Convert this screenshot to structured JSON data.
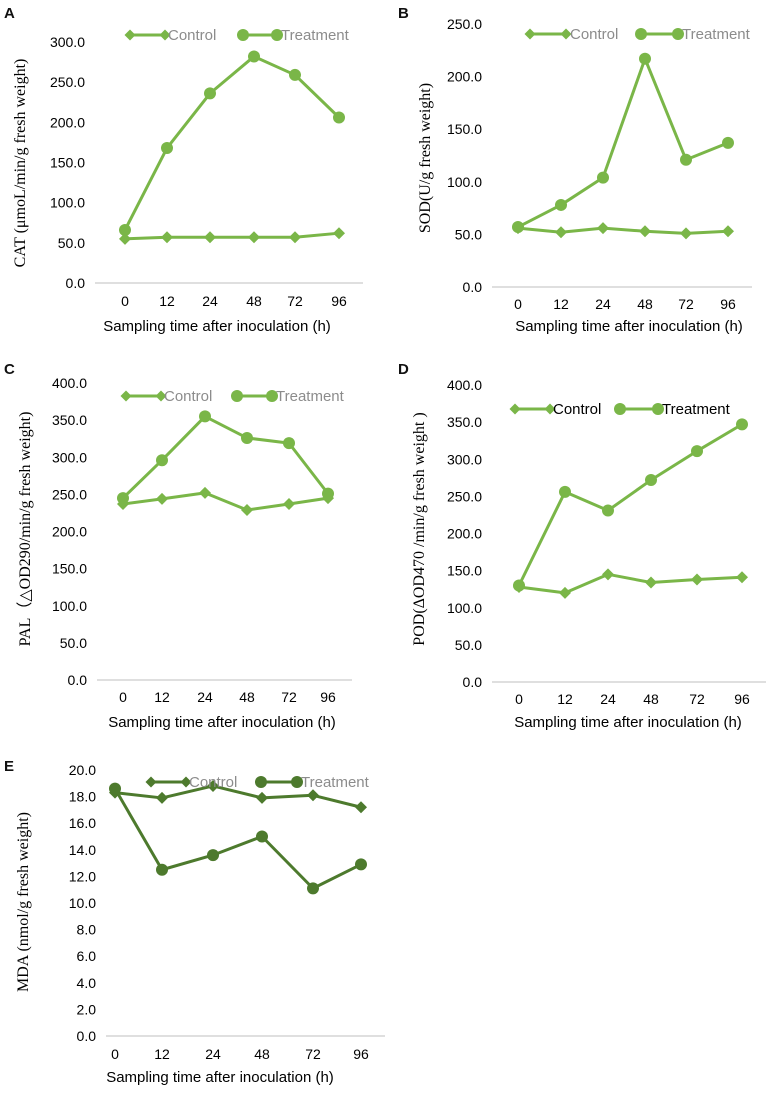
{
  "chart_data": [
    {
      "panel": "A",
      "type": "line",
      "categories": [
        "0",
        "12",
        "24",
        "48",
        "72",
        "96"
      ],
      "series": [
        {
          "name": "Control",
          "marker": "diamond",
          "values": [
            55,
            57,
            57,
            57,
            57,
            62
          ]
        },
        {
          "name": "Treatment",
          "marker": "circle",
          "values": [
            66,
            168,
            236,
            282,
            259,
            206
          ]
        }
      ],
      "yticks": [
        "0.0",
        "50.0",
        "100.0",
        "150.0",
        "200.0",
        "250.0",
        "300.0"
      ],
      "ylim": [
        0,
        300
      ],
      "xlabel": "Sampling time after inoculation (h)",
      "ylabel": "CAT (μmoL/min/g fresh weight)",
      "legend_position": "top"
    },
    {
      "panel": "B",
      "type": "line",
      "categories": [
        "0",
        "12",
        "24",
        "48",
        "72",
        "96"
      ],
      "series": [
        {
          "name": "Control",
          "marker": "diamond",
          "values": [
            56,
            52,
            56,
            53,
            51,
            53
          ]
        },
        {
          "name": "Treatment",
          "marker": "circle",
          "values": [
            57,
            78,
            104,
            217,
            121,
            137
          ]
        }
      ],
      "yticks": [
        "0.0",
        "50.0",
        "100.0",
        "150.0",
        "200.0",
        "250.0"
      ],
      "ylim": [
        0,
        250
      ],
      "xlabel": "Sampling time after inoculation (h)",
      "ylabel": "SOD(U/g fresh weight)",
      "legend_position": "top"
    },
    {
      "panel": "C",
      "type": "line",
      "categories": [
        "0",
        "12",
        "24",
        "48",
        "72",
        "96"
      ],
      "series": [
        {
          "name": "Control",
          "marker": "diamond",
          "values": [
            237,
            244,
            252,
            229,
            237,
            245
          ]
        },
        {
          "name": "Treatment",
          "marker": "circle",
          "values": [
            245,
            296,
            355,
            326,
            319,
            251
          ]
        }
      ],
      "yticks": [
        "0.0",
        "50.0",
        "100.0",
        "150.0",
        "200.0",
        "250.0",
        "300.0",
        "350.0",
        "400.0"
      ],
      "ylim": [
        0,
        400
      ],
      "xlabel": "Sampling time after inoculation (h)",
      "ylabel": "PAL（△OD290/min/g fresh weight)",
      "legend_position": "top"
    },
    {
      "panel": "D",
      "type": "line",
      "categories": [
        "0",
        "12",
        "24",
        "48",
        "72",
        "96"
      ],
      "series": [
        {
          "name": "Control",
          "marker": "diamond",
          "values": [
            128,
            120,
            145,
            134,
            138,
            141
          ]
        },
        {
          "name": "Treatment",
          "marker": "circle",
          "values": [
            130,
            256,
            231,
            272,
            311,
            347
          ]
        }
      ],
      "yticks": [
        "0.0",
        "50.0",
        "100.0",
        "150.0",
        "200.0",
        "250.0",
        "300.0",
        "350.0",
        "400.0"
      ],
      "ylim": [
        0,
        400
      ],
      "xlabel": "Sampling time after inoculation (h)",
      "ylabel": "POD(ΔOD470 /min/g fresh weight )",
      "legend_position": "top"
    },
    {
      "panel": "E",
      "type": "line",
      "categories": [
        "0",
        "12",
        "24",
        "48",
        "72",
        "96"
      ],
      "series": [
        {
          "name": "Control",
          "marker": "diamond",
          "values": [
            18.3,
            17.9,
            18.8,
            17.9,
            18.1,
            17.2
          ]
        },
        {
          "name": "Treatment",
          "marker": "circle",
          "values": [
            18.6,
            12.5,
            13.6,
            15.0,
            11.1,
            12.9
          ]
        }
      ],
      "yticks": [
        "0.0",
        "2.0",
        "4.0",
        "6.0",
        "8.0",
        "10.0",
        "12.0",
        "14.0",
        "16.0",
        "18.0",
        "20.0"
      ],
      "ylim": [
        0,
        20
      ],
      "xlabel": "Sampling time after inoculation (h)",
      "ylabel": "MDA (nmol/g fresh weight)",
      "legend_position": "top"
    }
  ],
  "colors": {
    "light_green": "#7ab648",
    "dark_green": "#4d7a2d",
    "legend_grey": "#8c8c8c"
  }
}
